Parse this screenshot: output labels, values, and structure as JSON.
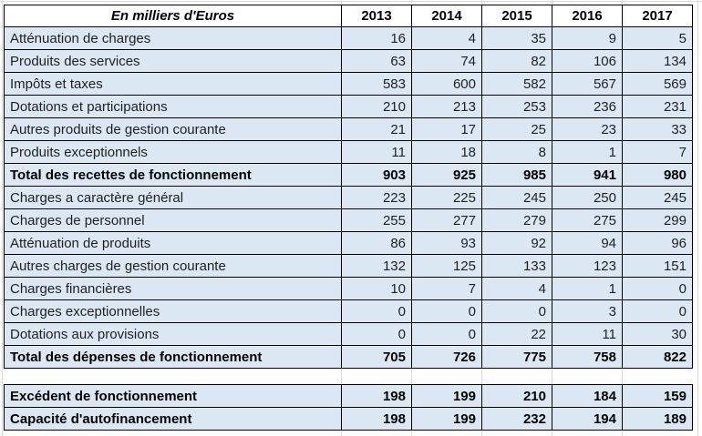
{
  "table": {
    "unit_label": "En milliers d'Euros",
    "years": [
      "2013",
      "2014",
      "2015",
      "2016",
      "2017"
    ],
    "sections": [
      {
        "name": "fonctionnement",
        "rows": [
          {
            "label": "Atténuation de charges",
            "bold": false,
            "values": [
              16,
              4,
              35,
              9,
              5
            ]
          },
          {
            "label": "Produits des services",
            "bold": false,
            "values": [
              63,
              74,
              82,
              106,
              134
            ]
          },
          {
            "label": "Impôts et taxes",
            "bold": false,
            "values": [
              583,
              600,
              582,
              567,
              569
            ]
          },
          {
            "label": "Dotations et participations",
            "bold": false,
            "values": [
              210,
              213,
              253,
              236,
              231
            ]
          },
          {
            "label": "Autres produits de gestion courante",
            "bold": false,
            "values": [
              21,
              17,
              25,
              23,
              33
            ]
          },
          {
            "label": "Produits exceptionnels",
            "bold": false,
            "values": [
              11,
              18,
              8,
              1,
              7
            ]
          },
          {
            "label": "Total des recettes de fonctionnement",
            "bold": true,
            "values": [
              903,
              925,
              985,
              941,
              980
            ]
          },
          {
            "label": "Charges a caractère général",
            "bold": false,
            "values": [
              223,
              225,
              245,
              250,
              245
            ]
          },
          {
            "label": "Charges de personnel",
            "bold": false,
            "values": [
              255,
              277,
              279,
              275,
              299
            ]
          },
          {
            "label": "Atténuation de produits",
            "bold": false,
            "values": [
              86,
              93,
              92,
              94,
              96
            ]
          },
          {
            "label": "Autres charges de gestion courante",
            "bold": false,
            "values": [
              132,
              125,
              133,
              123,
              151
            ]
          },
          {
            "label": "Charges financières",
            "bold": false,
            "values": [
              10,
              7,
              4,
              1,
              0
            ]
          },
          {
            "label": "Charges exceptionnelles",
            "bold": false,
            "values": [
              0,
              0,
              0,
              3,
              0
            ]
          },
          {
            "label": "Dotations aux provisions",
            "bold": false,
            "values": [
              0,
              0,
              22,
              11,
              30
            ]
          },
          {
            "label": "Total des dépenses de fonctionnement",
            "bold": true,
            "values": [
              705,
              726,
              775,
              758,
              822
            ]
          }
        ]
      },
      {
        "name": "synthese",
        "rows": [
          {
            "label": "Excédent de fonctionnement",
            "bold": true,
            "values": [
              198,
              199,
              210,
              184,
              159
            ]
          },
          {
            "label": "Capacité d'autofinancement",
            "bold": true,
            "values": [
              198,
              199,
              232,
              194,
              189
            ]
          }
        ]
      }
    ]
  },
  "colors": {
    "row_background": "#dbe8f4",
    "table_border": "#000000",
    "gridline": "#d9d9d9",
    "text": "#1f1f1f"
  }
}
